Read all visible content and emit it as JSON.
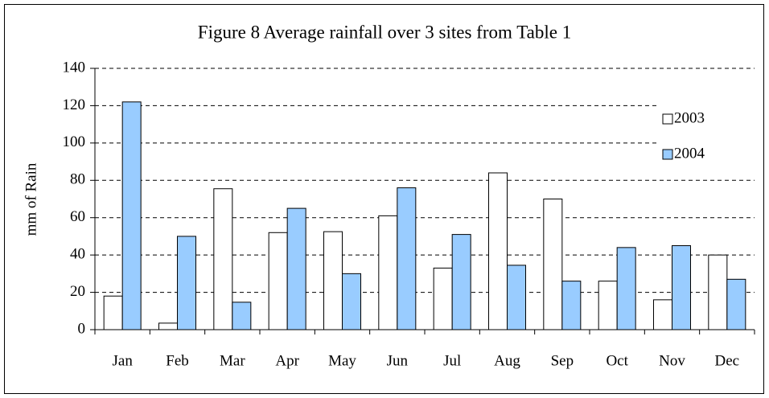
{
  "chart_data": {
    "type": "bar",
    "title": "Figure 8  Average rainfall over 3 sites from Table 1",
    "y_label": "mm of Rain",
    "categories": [
      "Jan",
      "Feb",
      "Mar",
      "Apr",
      "May",
      "Jun",
      "Jul",
      "Aug",
      "Sep",
      "Oct",
      "Nov",
      "Dec"
    ],
    "series": [
      {
        "name": "2003",
        "color": "#ffffff",
        "values": [
          18,
          3.5,
          75.5,
          52,
          52.5,
          61,
          33,
          84,
          70,
          26,
          16,
          40
        ]
      },
      {
        "name": "2004",
        "color": "#99ccff",
        "values": [
          122,
          50,
          14.7,
          65,
          30,
          76,
          51,
          34.5,
          26,
          44,
          45,
          27
        ]
      }
    ],
    "ylim": [
      0,
      140
    ],
    "yticks": [
      0,
      20,
      40,
      60,
      80,
      100,
      120,
      140
    ],
    "grid": true,
    "legend": "top-right"
  }
}
